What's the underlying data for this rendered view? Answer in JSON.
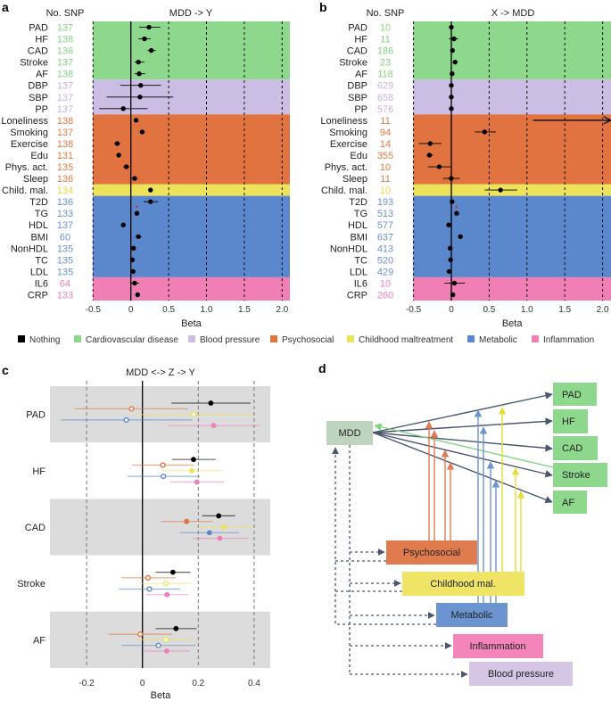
{
  "colors": {
    "Nothing": "#000000",
    "Cardiovascular disease": "#8ed88d",
    "Blood pressure": "#cbbde3",
    "Psychosocial": "#e0733f",
    "Childhood maltreatment": "#ede35a",
    "Metabolic": "#5b88cc",
    "Inflammation": "#f07fb5"
  },
  "legend": [
    "Nothing",
    "Cardiovascular disease",
    "Blood pressure",
    "Psychosocial",
    "Childhood maltreatment",
    "Metabolic",
    "Inflammation"
  ],
  "chart_data": [
    {
      "panel": "a",
      "type": "forest",
      "title": "MDD -> Y",
      "column_header": "No. SNP",
      "xlabel": "Beta",
      "xlim": [
        -0.5,
        2.1
      ],
      "xticks": [
        "-0.5",
        "0",
        "0.5",
        "1.0",
        "1.5",
        "2.0"
      ],
      "xtick_values": [
        -0.5,
        0,
        0.5,
        1.0,
        1.5,
        2.0
      ],
      "grid": "dashed vertical",
      "rows": [
        {
          "label": "PAD",
          "group": "Cardiovascular disease",
          "n_snp": "137",
          "beta": 0.24,
          "ci": [
            0.11,
            0.39
          ]
        },
        {
          "label": "HF",
          "group": "Cardiovascular disease",
          "n_snp": "138",
          "beta": 0.18,
          "ci": [
            0.1,
            0.26
          ]
        },
        {
          "label": "CAD",
          "group": "Cardiovascular disease",
          "n_snp": "136",
          "beta": 0.27,
          "ci": [
            0.22,
            0.33
          ]
        },
        {
          "label": "Stroke",
          "group": "Cardiovascular disease",
          "n_snp": "137",
          "beta": 0.1,
          "ci": [
            0.05,
            0.18
          ]
        },
        {
          "label": "AF",
          "group": "Cardiovascular disease",
          "n_snp": "138",
          "beta": 0.11,
          "ci": [
            0.05,
            0.19
          ]
        },
        {
          "label": "DBP",
          "group": "Blood pressure",
          "n_snp": "137",
          "beta": 0.13,
          "ci": [
            -0.14,
            0.4
          ]
        },
        {
          "label": "SBP",
          "group": "Blood pressure",
          "n_snp": "137",
          "beta": 0.12,
          "ci": [
            -0.32,
            0.56
          ]
        },
        {
          "label": "PP",
          "group": "Blood pressure",
          "n_snp": "137",
          "beta": -0.1,
          "ci": [
            -0.42,
            0.22
          ]
        },
        {
          "label": "Loneliness",
          "group": "Psychosocial",
          "n_snp": "138",
          "beta": 0.07,
          "ci": [
            0.05,
            0.1
          ]
        },
        {
          "label": "Smoking",
          "group": "Psychosocial",
          "n_snp": "137",
          "beta": 0.15,
          "ci": [
            0.13,
            0.17
          ]
        },
        {
          "label": "Exercise",
          "group": "Psychosocial",
          "n_snp": "138",
          "beta": -0.18,
          "ci": [
            -0.22,
            -0.14
          ]
        },
        {
          "label": "Edu",
          "group": "Psychosocial",
          "n_snp": "131",
          "beta": -0.16,
          "ci": [
            -0.19,
            -0.13
          ]
        },
        {
          "label": "Phys. act.",
          "group": "Psychosocial",
          "n_snp": "135",
          "beta": -0.06,
          "ci": [
            -0.1,
            -0.02
          ]
        },
        {
          "label": "Sleep",
          "group": "Psychosocial",
          "n_snp": "136",
          "beta": 0.05,
          "ci": [
            0.01,
            0.09
          ]
        },
        {
          "label": "Child. mal.",
          "group": "Childhood maltreatment",
          "n_snp": "134",
          "beta": 0.26,
          "ci": [
            0.24,
            0.28
          ]
        },
        {
          "label": "T2D",
          "group": "Metabolic",
          "n_snp": "136",
          "beta": 0.26,
          "ci": [
            0.17,
            0.36
          ]
        },
        {
          "label": "TG",
          "group": "Metabolic",
          "n_snp": "133",
          "beta": 0.08,
          "ci": [
            0.06,
            0.1
          ],
          "marker": "*"
        },
        {
          "label": "HDL",
          "group": "Metabolic",
          "n_snp": "137",
          "beta": -0.1,
          "ci": [
            -0.12,
            -0.08
          ]
        },
        {
          "label": "BMI",
          "group": "Metabolic",
          "n_snp": "60",
          "beta": 0.1,
          "ci": [
            0.06,
            0.14
          ]
        },
        {
          "label": "NonHDL",
          "group": "Metabolic",
          "n_snp": "135",
          "beta": 0.035,
          "ci": [
            0.02,
            0.05
          ]
        },
        {
          "label": "TC",
          "group": "Metabolic",
          "n_snp": "135",
          "beta": 0.02,
          "ci": [
            0.01,
            0.03
          ]
        },
        {
          "label": "LDL",
          "group": "Metabolic",
          "n_snp": "135",
          "beta": 0.03,
          "ci": [
            0.02,
            0.04
          ]
        },
        {
          "label": "IL6",
          "group": "Inflammation",
          "n_snp": "64",
          "beta": 0.05,
          "ci": [
            -0.01,
            0.11
          ]
        },
        {
          "label": "CRP",
          "group": "Inflammation",
          "n_snp": "133",
          "beta": 0.09,
          "ci": [
            0.07,
            0.11
          ]
        }
      ]
    },
    {
      "panel": "b",
      "type": "forest",
      "title": "X -> MDD",
      "column_header": "No. SNP",
      "xlabel": "Beta",
      "xlim": [
        -0.5,
        2.1
      ],
      "xticks": [
        "-0.5",
        "0",
        "0.5",
        "1.0",
        "1.5",
        "2.0"
      ],
      "xtick_values": [
        -0.5,
        0,
        0.5,
        1.0,
        1.5,
        2.0
      ],
      "grid": "dashed vertical",
      "rows": [
        {
          "label": "PAD",
          "group": "Cardiovascular disease",
          "n_snp": "10",
          "beta": 0.0,
          "ci": [
            -0.01,
            0.01
          ]
        },
        {
          "label": "HF",
          "group": "Cardiovascular disease",
          "n_snp": "11",
          "beta": 0.035,
          "ci": [
            -0.03,
            0.09
          ]
        },
        {
          "label": "CAD",
          "group": "Cardiovascular disease",
          "n_snp": "186",
          "beta": 0.015,
          "ci": [
            0.0,
            0.03
          ]
        },
        {
          "label": "Stroke",
          "group": "Cardiovascular disease",
          "n_snp": "23",
          "beta": 0.05,
          "ci": [
            0.03,
            0.07
          ]
        },
        {
          "label": "AF",
          "group": "Cardiovascular disease",
          "n_snp": "118",
          "beta": 0.01,
          "ci": [
            0.0,
            0.02
          ]
        },
        {
          "label": "DBP",
          "group": "Blood pressure",
          "n_snp": "629",
          "beta": 0.0,
          "ci": [
            -0.01,
            0.01
          ]
        },
        {
          "label": "SBP",
          "group": "Blood pressure",
          "n_snp": "658",
          "beta": 0.0,
          "ci": [
            -0.01,
            0.01
          ]
        },
        {
          "label": "PP",
          "group": "Blood pressure",
          "n_snp": "576",
          "beta": 0.0,
          "ci": [
            -0.01,
            0.01
          ]
        },
        {
          "label": "Loneliness",
          "group": "Psychosocial",
          "n_snp": "11",
          "beta": null,
          "ci": [
            1.08,
            null
          ],
          "off_scale": true
        },
        {
          "label": "Smoking",
          "group": "Psychosocial",
          "n_snp": "94",
          "beta": 0.44,
          "ci": [
            0.31,
            0.59
          ]
        },
        {
          "label": "Exercise",
          "group": "Psychosocial",
          "n_snp": "14",
          "beta": -0.28,
          "ci": [
            -0.43,
            -0.13
          ]
        },
        {
          "label": "Edu",
          "group": "Psychosocial",
          "n_snp": "355",
          "beta": -0.29,
          "ci": [
            -0.33,
            -0.24
          ]
        },
        {
          "label": "Phys. act.",
          "group": "Psychosocial",
          "n_snp": "10",
          "beta": -0.16,
          "ci": [
            -0.31,
            -0.01
          ]
        },
        {
          "label": "Sleep",
          "group": "Psychosocial",
          "n_snp": "11",
          "beta": 0.0,
          "ci": [
            -0.11,
            0.11
          ]
        },
        {
          "label": "Child. mal.",
          "group": "Childhood maltreatment",
          "n_snp": "10",
          "beta": 0.65,
          "ci": [
            0.44,
            0.87
          ]
        },
        {
          "label": "T2D",
          "group": "Metabolic",
          "n_snp": "193",
          "beta": 0.01,
          "ci": [
            0.0,
            0.02
          ]
        },
        {
          "label": "TG",
          "group": "Metabolic",
          "n_snp": "513",
          "beta": 0.07,
          "ci": [
            0.06,
            0.08
          ],
          "marker": "*"
        },
        {
          "label": "HDL",
          "group": "Metabolic",
          "n_snp": "577",
          "beta": -0.035,
          "ci": [
            -0.045,
            -0.025
          ]
        },
        {
          "label": "BMI",
          "group": "Metabolic",
          "n_snp": "637",
          "beta": 0.12,
          "ci": [
            0.11,
            0.13
          ]
        },
        {
          "label": "NonHDL",
          "group": "Metabolic",
          "n_snp": "413",
          "beta": -0.015,
          "ci": [
            -0.025,
            -0.005
          ]
        },
        {
          "label": "TC",
          "group": "Metabolic",
          "n_snp": "520",
          "beta": -0.01,
          "ci": [
            -0.02,
            0.0
          ]
        },
        {
          "label": "LDL",
          "group": "Metabolic",
          "n_snp": "429",
          "beta": -0.03,
          "ci": [
            -0.04,
            -0.02
          ]
        },
        {
          "label": "IL6",
          "group": "Inflammation",
          "n_snp": "10",
          "beta": 0.04,
          "ci": [
            -0.09,
            0.18
          ]
        },
        {
          "label": "CRP",
          "group": "Inflammation",
          "n_snp": "260",
          "beta": 0.02,
          "ci": [
            0.01,
            0.03
          ]
        }
      ]
    },
    {
      "panel": "c",
      "type": "forest",
      "title": "MDD <-> Z -> Y",
      "xlabel": "Beta",
      "xlim": [
        -0.33,
        0.46
      ],
      "xticks": [
        "-0.2",
        "0",
        "0.2",
        "0.4"
      ],
      "xtick_values": [
        -0.2,
        0,
        0.2,
        0.4
      ],
      "grid": "dashed vertical",
      "series_order": [
        "Nothing",
        "Psychosocial",
        "Childhood maltreatment",
        "Metabolic",
        "Inflammation"
      ],
      "groups": [
        {
          "label": "PAD",
          "points": [
            {
              "series": "Nothing",
              "beta": 0.245,
              "ci": [
                0.104,
                0.387
              ],
              "filled": true
            },
            {
              "series": "Psychosocial",
              "beta": -0.039,
              "ci": [
                -0.243,
                0.164
              ],
              "filled": false
            },
            {
              "series": "Childhood maltreatment",
              "beta": 0.184,
              "ci": [
                -0.022,
                0.392
              ],
              "filled": false
            },
            {
              "series": "Metabolic",
              "beta": -0.058,
              "ci": [
                -0.293,
                0.177
              ],
              "filled": false
            },
            {
              "series": "Inflammation",
              "beta": 0.255,
              "ci": [
                0.091,
                0.421
              ],
              "filled": true
            }
          ]
        },
        {
          "label": "HF",
          "points": [
            {
              "series": "Nothing",
              "beta": 0.183,
              "ci": [
                0.106,
                0.262
              ],
              "filled": true
            },
            {
              "series": "Psychosocial",
              "beta": 0.073,
              "ci": [
                -0.037,
                0.184
              ],
              "filled": false
            },
            {
              "series": "Childhood maltreatment",
              "beta": 0.177,
              "ci": [
                0.068,
                0.287
              ],
              "filled": true
            },
            {
              "series": "Metabolic",
              "beta": 0.075,
              "ci": [
                -0.054,
                0.206
              ],
              "filled": false
            },
            {
              "series": "Inflammation",
              "beta": 0.195,
              "ci": [
                0.098,
                0.293
              ],
              "filled": true
            }
          ]
        },
        {
          "label": "CAD",
          "points": [
            {
              "series": "Nothing",
              "beta": 0.273,
              "ci": [
                0.214,
                0.332
              ],
              "filled": true
            },
            {
              "series": "Psychosocial",
              "beta": 0.158,
              "ci": [
                0.067,
                0.252
              ],
              "filled": true
            },
            {
              "series": "Childhood maltreatment",
              "beta": 0.292,
              "ci": [
                0.198,
                0.392
              ],
              "filled": true
            },
            {
              "series": "Metabolic",
              "beta": 0.24,
              "ci": [
                0.134,
                0.346
              ],
              "filled": true
            },
            {
              "series": "Inflammation",
              "beta": 0.277,
              "ci": [
                0.179,
                0.379
              ],
              "filled": true
            }
          ]
        },
        {
          "label": "Stroke",
          "points": [
            {
              "series": "Nothing",
              "beta": 0.109,
              "ci": [
                0.047,
                0.172
              ],
              "filled": true
            },
            {
              "series": "Psychosocial",
              "beta": 0.02,
              "ci": [
                -0.077,
                0.119
              ],
              "filled": false
            },
            {
              "series": "Childhood maltreatment",
              "beta": 0.084,
              "ci": [
                -0.006,
                0.175
              ],
              "filled": false
            },
            {
              "series": "Metabolic",
              "beta": 0.025,
              "ci": [
                -0.084,
                0.135
              ],
              "filled": false
            },
            {
              "series": "Inflammation",
              "beta": 0.088,
              "ci": [
                0.012,
                0.165
              ],
              "filled": true
            }
          ]
        },
        {
          "label": "AF",
          "points": [
            {
              "series": "Nothing",
              "beta": 0.12,
              "ci": [
                0.047,
                0.194
              ],
              "filled": true
            },
            {
              "series": "Psychosocial",
              "beta": -0.008,
              "ci": [
                -0.122,
                0.107
              ],
              "filled": false
            },
            {
              "series": "Childhood maltreatment",
              "beta": 0.084,
              "ci": [
                -0.022,
                0.187
              ],
              "filled": false
            },
            {
              "series": "Metabolic",
              "beta": 0.057,
              "ci": [
                -0.075,
                0.192
              ],
              "filled": false
            },
            {
              "series": "Inflammation",
              "beta": 0.087,
              "ci": [
                0.004,
                0.169
              ],
              "filled": true
            }
          ]
        }
      ]
    }
  ],
  "diagram": {
    "panel": "d",
    "nodes": {
      "mdd": "MDD",
      "pad": "PAD",
      "hf": "HF",
      "cad": "CAD",
      "stroke": "Stroke",
      "af": "AF",
      "psychosocial": "Psychosocial",
      "childhood": "Childhood mal.",
      "metabolic": "Metabolic",
      "inflammation": "Inflammation",
      "blood_pressure": "Blood pressure"
    },
    "node_colors": {
      "mdd": "#bfd4bf",
      "outcome": "#8ed88d",
      "psychosocial": "#e07b4f",
      "childhood": "#efe466",
      "metabolic": "#6b94d1",
      "inflammation": "#f385ba",
      "blood_pressure": "#d5c6e6"
    }
  },
  "panel_labels": {
    "a": "a",
    "b": "b",
    "c": "c",
    "d": "d"
  }
}
